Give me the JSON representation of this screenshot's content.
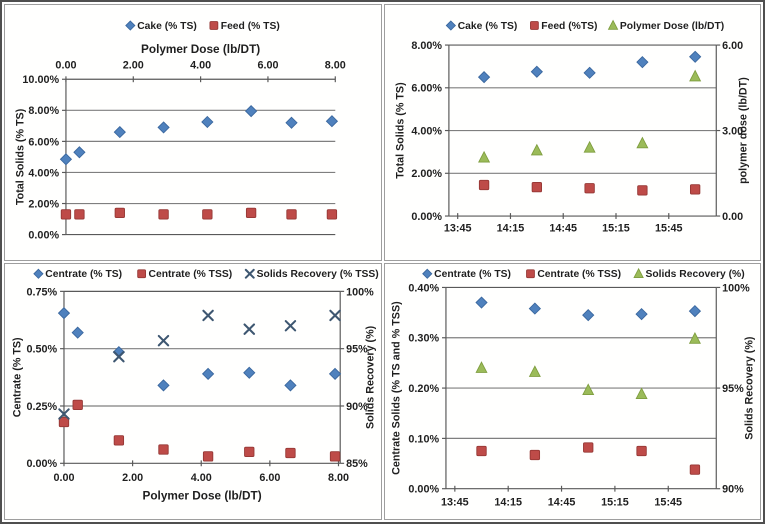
{
  "page": {
    "description": "Grid of four dewatering performance scatter charts"
  },
  "colors": {
    "series_blue": "#4F81BD",
    "series_red": "#BE4B48",
    "series_green": "#9BBB59",
    "series_x": "#3E5771",
    "grid": "#7f7f7f",
    "axis": "#595959",
    "text": "#1f1f1f"
  },
  "chart_data": [
    {
      "name": "cake-feed-vs-polymer-dose",
      "type": "scatter",
      "grid": "horizontal",
      "legend_position": "top",
      "x_axis": {
        "position": "top",
        "title": "Polymer Dose (lb/DT)",
        "min": 0,
        "max": 8,
        "tick_values": [
          0,
          2,
          4,
          6,
          8
        ],
        "tick_labels": [
          "0.00",
          "2.00",
          "4.00",
          "6.00",
          "8.00"
        ]
      },
      "y_left": {
        "title": "Total Solids (% TS)",
        "min": 0,
        "max": 10,
        "tick_values": [
          0,
          2,
          4,
          6,
          8,
          10
        ],
        "tick_labels": [
          "0.00%",
          "2.00%",
          "4.00%",
          "6.00%",
          "8.00%",
          "10.00%"
        ]
      },
      "series": [
        {
          "name": "Cake (% TS)",
          "marker": "diamond",
          "color_key": "series_blue",
          "axis": "left",
          "x": [
            0.0,
            0.4,
            1.6,
            2.9,
            4.2,
            5.5,
            6.7,
            7.9
          ],
          "y": [
            4.85,
            5.3,
            6.6,
            6.9,
            7.25,
            7.95,
            7.2,
            7.3
          ]
        },
        {
          "name": "Feed (% TS)",
          "marker": "square",
          "color_key": "series_red",
          "axis": "left",
          "x": [
            0.0,
            0.4,
            1.6,
            2.9,
            4.2,
            5.5,
            6.7,
            7.9
          ],
          "y": [
            1.3,
            1.3,
            1.4,
            1.3,
            1.3,
            1.4,
            1.3,
            1.3
          ]
        }
      ]
    },
    {
      "name": "cake-feed-polymer-vs-time",
      "type": "scatter",
      "grid": "horizontal",
      "legend_position": "top",
      "x_axis": {
        "position": "bottom",
        "title": "",
        "min": 820,
        "max": 972,
        "tick_values": [
          825,
          855,
          885,
          915,
          945
        ],
        "tick_labels": [
          "13:45",
          "14:15",
          "14:45",
          "15:15",
          "15:45"
        ]
      },
      "y_left": {
        "title": "Total Solids (% TS)",
        "min": 0,
        "max": 8,
        "tick_values": [
          0,
          2,
          4,
          6,
          8
        ],
        "tick_labels": [
          "0.00%",
          "2.00%",
          "4.00%",
          "6.00%",
          "8.00%"
        ]
      },
      "y_right": {
        "title": "polymer dose (lb/DT)",
        "min": 0,
        "max": 6,
        "tick_values": [
          0,
          3,
          6
        ],
        "tick_labels": [
          "0.00",
          "3.00",
          "6.00"
        ]
      },
      "series": [
        {
          "name": "Cake (% TS)",
          "marker": "diamond",
          "color_key": "series_blue",
          "axis": "left",
          "x": [
            840,
            870,
            900,
            930,
            960
          ],
          "y": [
            6.5,
            6.75,
            6.7,
            7.2,
            7.45
          ]
        },
        {
          "name": "Feed (%TS)",
          "marker": "square",
          "color_key": "series_red",
          "axis": "left",
          "x": [
            840,
            870,
            900,
            930,
            960
          ],
          "y": [
            1.45,
            1.35,
            1.3,
            1.2,
            1.25
          ]
        },
        {
          "name": "Polymer Dose (lb/DT)",
          "marker": "triangle",
          "color_key": "series_green",
          "axis": "right",
          "x": [
            840,
            870,
            900,
            930,
            960
          ],
          "y": [
            2.05,
            2.3,
            2.4,
            2.55,
            4.9
          ]
        }
      ]
    },
    {
      "name": "centrate-recovery-vs-polymer-dose",
      "type": "scatter",
      "grid": "horizontal",
      "legend_position": "top",
      "x_axis": {
        "position": "bottom",
        "title": "Polymer Dose (lb/DT)",
        "min": 0,
        "max": 8.05,
        "tick_values": [
          0,
          2,
          4,
          6,
          8
        ],
        "tick_labels": [
          "0.00",
          "2.00",
          "4.00",
          "6.00",
          "8.00"
        ]
      },
      "y_left": {
        "title": "Centrate (% TS)",
        "min": 0,
        "max": 0.75,
        "tick_values": [
          0,
          0.25,
          0.5,
          0.75
        ],
        "tick_labels": [
          "0.00%",
          "0.25%",
          "0.50%",
          "0.75%"
        ]
      },
      "y_right": {
        "title": "Solids Recovery (%)",
        "min": 85,
        "max": 100,
        "tick_values": [
          85,
          90,
          95,
          100
        ],
        "tick_labels": [
          "85%",
          "90%",
          "95%",
          "100%"
        ]
      },
      "series": [
        {
          "name": "Centrate (% TS)",
          "marker": "diamond",
          "color_key": "series_blue",
          "axis": "left",
          "x": [
            0.0,
            0.4,
            1.6,
            2.9,
            4.2,
            5.4,
            6.6,
            7.9
          ],
          "y": [
            0.655,
            0.57,
            0.485,
            0.34,
            0.39,
            0.395,
            0.34,
            0.39
          ]
        },
        {
          "name": "Centrate (% TSS)",
          "marker": "square",
          "color_key": "series_red",
          "axis": "left",
          "x": [
            0.0,
            0.4,
            1.6,
            2.9,
            4.2,
            5.4,
            6.6,
            7.9
          ],
          "y": [
            0.18,
            0.255,
            0.1,
            0.06,
            0.03,
            0.05,
            0.045,
            0.03
          ]
        },
        {
          "name": "Solids Recovery (% TSS)",
          "marker": "x",
          "color_key": "series_x",
          "axis": "right",
          "x": [
            0.0,
            1.6,
            2.9,
            4.2,
            5.4,
            6.6,
            7.9
          ],
          "y": [
            89.3,
            94.3,
            95.7,
            97.9,
            96.7,
            97.0,
            97.9
          ]
        }
      ]
    },
    {
      "name": "centrate-recovery-vs-time",
      "type": "scatter",
      "grid": "horizontal",
      "legend_position": "top",
      "x_axis": {
        "position": "bottom",
        "title": "",
        "min": 820,
        "max": 972,
        "tick_values": [
          825,
          855,
          885,
          915,
          945
        ],
        "tick_labels": [
          "13:45",
          "14:15",
          "14:45",
          "15:15",
          "15:45"
        ]
      },
      "y_left": {
        "title": "Centrate Solids (% TS and % TSS)",
        "min": 0,
        "max": 0.4,
        "tick_values": [
          0,
          0.1,
          0.2,
          0.3,
          0.4
        ],
        "tick_labels": [
          "0.00%",
          "0.10%",
          "0.20%",
          "0.30%",
          "0.40%"
        ]
      },
      "y_right": {
        "title": "Solids Recovery (%)",
        "min": 90,
        "max": 100,
        "tick_values": [
          90,
          95,
          100
        ],
        "tick_labels": [
          "90%",
          "95%",
          "100%"
        ]
      },
      "series": [
        {
          "name": "Centrate (% TS)",
          "marker": "diamond",
          "color_key": "series_blue",
          "axis": "left",
          "x": [
            840,
            870,
            900,
            930,
            960
          ],
          "y": [
            0.37,
            0.358,
            0.345,
            0.347,
            0.353
          ]
        },
        {
          "name": "Centrate (% TSS)",
          "marker": "square",
          "color_key": "series_red",
          "axis": "left",
          "x": [
            840,
            870,
            900,
            930,
            960
          ],
          "y": [
            0.075,
            0.067,
            0.082,
            0.075,
            0.038
          ]
        },
        {
          "name": "Solids Recovery (%)",
          "marker": "triangle",
          "color_key": "series_green",
          "axis": "right",
          "x": [
            840,
            870,
            900,
            930,
            960
          ],
          "y": [
            96.0,
            95.8,
            94.9,
            94.7,
            97.45
          ]
        }
      ]
    }
  ]
}
